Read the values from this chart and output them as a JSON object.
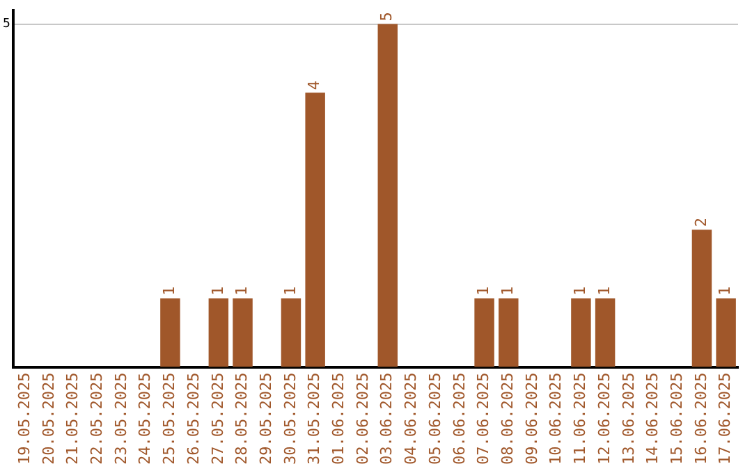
{
  "chart_data": {
    "type": "bar",
    "categories": [
      "19.05.2025",
      "20.05.2025",
      "21.05.2025",
      "22.05.2025",
      "23.05.2025",
      "24.05.2025",
      "25.05.2025",
      "26.05.2025",
      "27.05.2025",
      "28.05.2025",
      "29.05.2025",
      "30.05.2025",
      "31.05.2025",
      "01.06.2025",
      "02.06.2025",
      "03.06.2025",
      "04.06.2025",
      "05.06.2025",
      "06.06.2025",
      "07.06.2025",
      "08.06.2025",
      "09.06.2025",
      "10.06.2025",
      "11.06.2025",
      "12.06.2025",
      "13.06.2025",
      "14.06.2025",
      "15.06.2025",
      "16.06.2025",
      "17.06.2025"
    ],
    "values": [
      0,
      0,
      0,
      0,
      0,
      0,
      1,
      0,
      1,
      1,
      0,
      1,
      4,
      0,
      0,
      5,
      0,
      0,
      0,
      1,
      1,
      0,
      0,
      1,
      1,
      0,
      0,
      0,
      2,
      1
    ],
    "value_labels": [
      null,
      null,
      null,
      null,
      null,
      null,
      "1",
      null,
      "1",
      "1",
      null,
      "1",
      "4",
      null,
      null,
      "5",
      null,
      null,
      null,
      "1",
      "1",
      null,
      null,
      "1",
      "1",
      null,
      null,
      null,
      "2",
      "1"
    ],
    "color": "#a0572a",
    "ylim": [
      0,
      5.2
    ],
    "yticks": [
      5
    ],
    "grid": "y",
    "legend": false
  }
}
